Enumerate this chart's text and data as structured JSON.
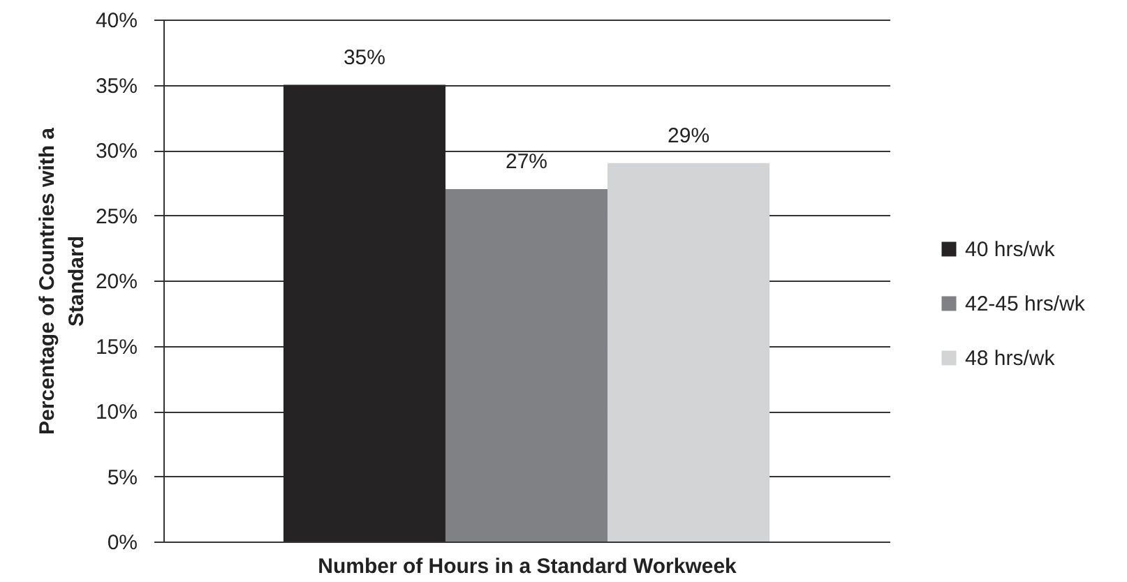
{
  "chart_data": {
    "type": "bar",
    "categories": [
      null
    ],
    "xlabel": "Number of Hours in a Standard Workweek",
    "ylabel": "Percentage of Countries with a Standard",
    "series": [
      {
        "name": "40 hrs/wk",
        "color": "#252324",
        "values": [
          35
        ],
        "value_labels": [
          "35%"
        ]
      },
      {
        "name": "42-45 hrs/wk",
        "color": "#808184",
        "values": [
          27
        ],
        "value_labels": [
          "27%"
        ]
      },
      {
        "name": "48 hrs/wk",
        "color": "#d3d4d6",
        "values": [
          29
        ],
        "value_labels": [
          "29%"
        ]
      }
    ],
    "ylim": [
      0,
      40
    ],
    "yticks": [
      {
        "value": 0,
        "label": "0%"
      },
      {
        "value": 5,
        "label": "5%"
      },
      {
        "value": 10,
        "label": "10%"
      },
      {
        "value": 15,
        "label": "15%"
      },
      {
        "value": 20,
        "label": "20%"
      },
      {
        "value": 25,
        "label": "25%"
      },
      {
        "value": 30,
        "label": "30%"
      },
      {
        "value": 35,
        "label": "35%"
      },
      {
        "value": 40,
        "label": "40%"
      }
    ],
    "grid": "y",
    "legend": "right"
  }
}
